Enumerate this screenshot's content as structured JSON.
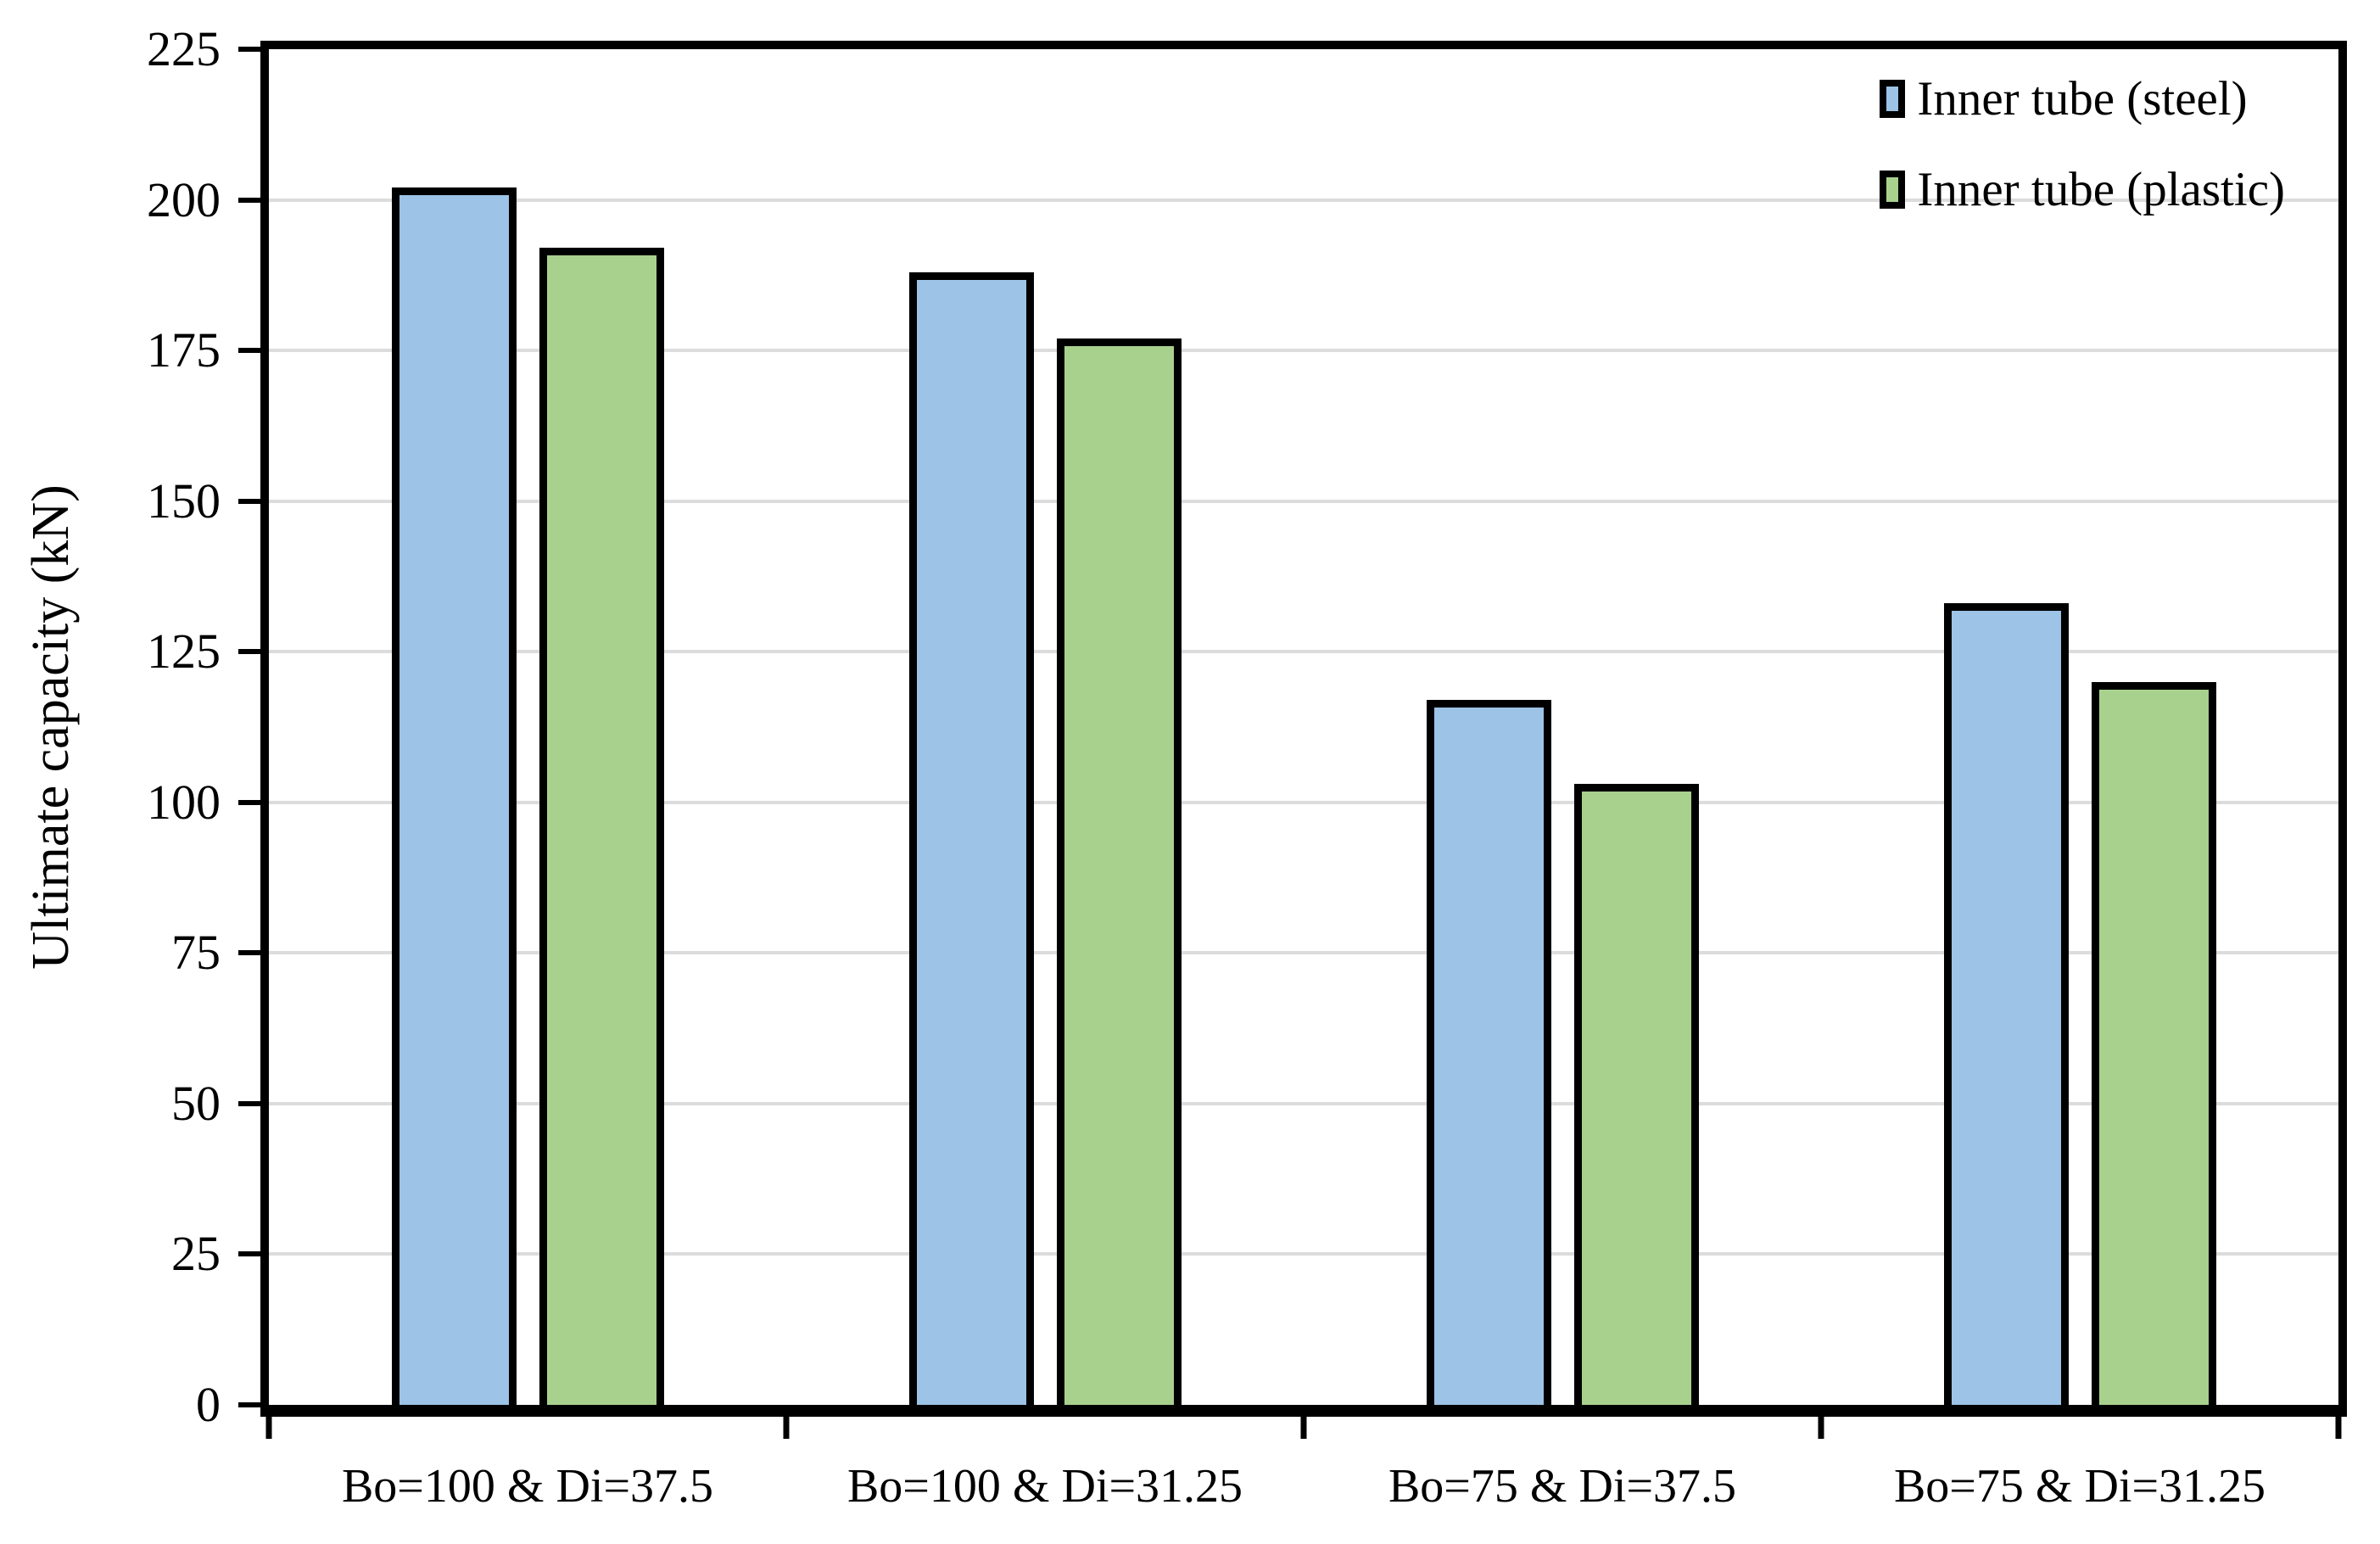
{
  "chart_data": {
    "type": "bar",
    "title": "",
    "xlabel": "",
    "ylabel": "Ultimate capacity (kN)",
    "ylim": [
      0,
      225
    ],
    "y_tick_step": 25,
    "y_tick_values": [
      0,
      25,
      50,
      75,
      100,
      125,
      150,
      175,
      200,
      225
    ],
    "grid": true,
    "legend_position": "top-right-inside",
    "categories": [
      "Bo=100 & Di=37.5",
      "Bo=100 & Di=31.25",
      "Bo=75 & Di=37.5",
      "Bo=75 & Di=31.25"
    ],
    "series": [
      {
        "name": "Inner tube (steel)",
        "color": "#9DC3E6",
        "values": [
          202,
          188,
          117,
          133
        ]
      },
      {
        "name": "Inner tube (plastic)",
        "color": "#A9D18E",
        "values": [
          192,
          177,
          103,
          120
        ]
      }
    ],
    "colors": {
      "bar_border": "#000000",
      "gridline": "#DCDCDC",
      "axis": "#000000",
      "background": "#FFFFFF",
      "text": "#000000"
    }
  }
}
